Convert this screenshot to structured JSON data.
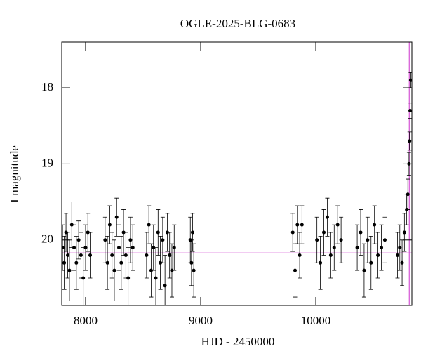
{
  "chart_data": {
    "type": "scatter",
    "title": "OGLE-2025-BLG-0683",
    "xlabel": "HJD - 2450000",
    "ylabel": "I magnitude",
    "x": [
      7800,
      7815,
      7830,
      7845,
      7860,
      7880,
      7900,
      7920,
      7940,
      7960,
      7980,
      8000,
      8020,
      8040,
      8170,
      8190,
      8210,
      8230,
      8250,
      8270,
      8290,
      8310,
      8330,
      8350,
      8370,
      8390,
      8410,
      8530,
      8550,
      8570,
      8590,
      8610,
      8630,
      8650,
      8670,
      8690,
      8710,
      8730,
      8750,
      8770,
      8910,
      8920,
      8930,
      8940,
      9800,
      9820,
      9840,
      9860,
      9880,
      10010,
      10040,
      10070,
      10100,
      10130,
      10160,
      10190,
      10220,
      10360,
      10390,
      10420,
      10450,
      10480,
      10510,
      10540,
      10570,
      10600,
      10710,
      10730,
      10750,
      10770,
      10790,
      10800,
      10810,
      10815,
      10820,
      10825
    ],
    "values": [
      20.1,
      20.3,
      19.9,
      20.2,
      20.4,
      19.8,
      20.1,
      20.3,
      20.0,
      20.2,
      20.5,
      20.1,
      19.9,
      20.2,
      20.0,
      20.3,
      19.8,
      20.2,
      20.4,
      19.7,
      20.1,
      20.3,
      19.9,
      20.2,
      20.5,
      20.0,
      20.1,
      20.2,
      19.8,
      20.4,
      20.1,
      20.5,
      19.9,
      20.3,
      20.0,
      20.6,
      19.9,
      20.2,
      20.4,
      20.1,
      20.0,
      20.3,
      19.9,
      20.4,
      19.9,
      20.4,
      19.8,
      20.2,
      19.8,
      20.0,
      20.3,
      19.9,
      19.7,
      20.2,
      20.1,
      19.8,
      20.0,
      20.1,
      19.9,
      20.4,
      20.0,
      20.3,
      19.8,
      20.2,
      20.1,
      20.0,
      20.2,
      20.1,
      20.3,
      19.9,
      19.6,
      19.4,
      19.0,
      18.7,
      18.3,
      17.9
    ],
    "errors": [
      0.3,
      0.35,
      0.25,
      0.3,
      0.4,
      0.3,
      0.3,
      0.35,
      0.25,
      0.3,
      0.4,
      0.3,
      0.25,
      0.3,
      0.3,
      0.35,
      0.25,
      0.3,
      0.4,
      0.25,
      0.3,
      0.35,
      0.3,
      0.3,
      0.4,
      0.3,
      0.3,
      0.3,
      0.25,
      0.35,
      0.3,
      0.4,
      0.3,
      0.35,
      0.3,
      0.4,
      0.25,
      0.3,
      0.35,
      0.3,
      0.3,
      0.3,
      0.25,
      0.35,
      0.25,
      0.35,
      0.25,
      0.3,
      0.25,
      0.3,
      0.35,
      0.3,
      0.25,
      0.3,
      0.3,
      0.25,
      0.3,
      0.3,
      0.3,
      0.35,
      0.3,
      0.35,
      0.25,
      0.3,
      0.3,
      0.3,
      0.3,
      0.3,
      0.3,
      0.25,
      0.2,
      0.2,
      0.15,
      0.12,
      0.1,
      0.1
    ],
    "xlim": [
      7793,
      10835
    ],
    "ylim": [
      20.86,
      17.4
    ],
    "xticks": [
      8000,
      9000,
      10000
    ],
    "yticks": [
      18,
      19,
      20
    ],
    "baseline": 20.17,
    "event_time": 10812,
    "color": "#000000",
    "model_color": "#cc33cc"
  }
}
